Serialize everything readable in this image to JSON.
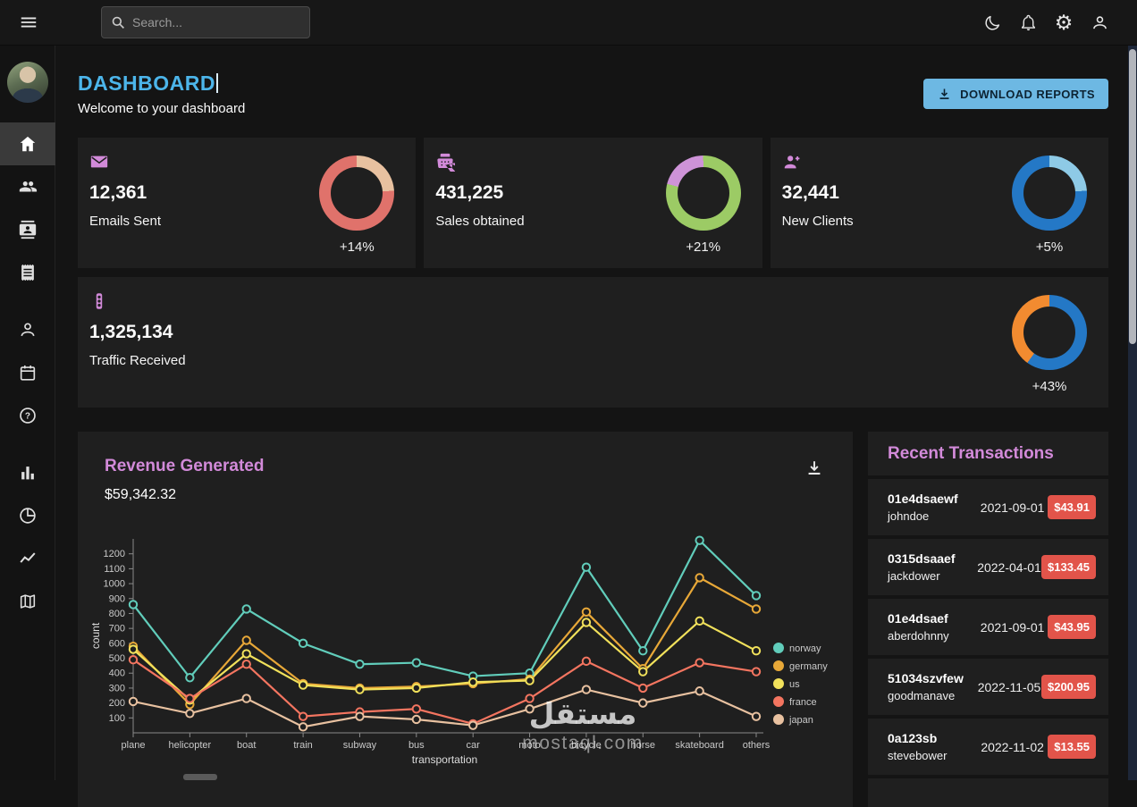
{
  "colors": {
    "accent_blue": "#4cb5ea",
    "accent_purple": "#d28ad9",
    "badge_red": "#e2544a",
    "card": "#1f1f1f",
    "background": "#141414"
  },
  "topbar": {
    "search_placeholder": "Search...",
    "icons": [
      "menu",
      "search",
      "dark-mode",
      "notifications",
      "settings",
      "profile"
    ]
  },
  "sidebar": {
    "items": [
      {
        "name": "dashboard",
        "icon": "home-icon",
        "active": true
      },
      {
        "name": "team",
        "icon": "people-icon",
        "active": false
      },
      {
        "name": "contacts",
        "icon": "contacts-icon",
        "active": false
      },
      {
        "name": "invoices",
        "icon": "receipt-icon",
        "active": false
      },
      {
        "name": "profile-form",
        "icon": "person-icon",
        "active": false
      },
      {
        "name": "calendar",
        "icon": "calendar-icon",
        "active": false
      },
      {
        "name": "faq",
        "icon": "help-icon",
        "active": false
      },
      {
        "name": "bar-chart",
        "icon": "bar-chart-icon",
        "active": false
      },
      {
        "name": "pie-chart",
        "icon": "pie-chart-icon",
        "active": false
      },
      {
        "name": "line-chart",
        "icon": "line-chart-icon",
        "active": false
      },
      {
        "name": "geography",
        "icon": "map-icon",
        "active": false
      }
    ]
  },
  "page": {
    "title": "DASHBOARD",
    "subtitle": "Welcome to your dashboard",
    "download_button": "DOWNLOAD REPORTS"
  },
  "stats": [
    {
      "icon": "email-icon",
      "value": "12,361",
      "label": "Emails Sent",
      "delta": "+14%",
      "donut": {
        "from": 0,
        "c1": "#e8c1a0",
        "c2": "#e0726b",
        "split": 24
      }
    },
    {
      "icon": "point-of-sale-icon",
      "value": "431,225",
      "label": "Sales obtained",
      "delta": "+21%",
      "donut": {
        "from": 284,
        "c1": "#ce93d8",
        "c2": "#9ccb65",
        "split": 21
      }
    },
    {
      "icon": "person-add-icon",
      "value": "32,441",
      "label": "New Clients",
      "delta": "+5%",
      "donut": {
        "from": 0,
        "c1": "#8ecae6",
        "c2": "#2478c6",
        "split": 24
      }
    },
    {
      "icon": "traffic-icon",
      "value": "1,325,134",
      "label": "Traffic Received",
      "delta": "+43%",
      "donut": {
        "from": 216,
        "c1": "#f28b30",
        "c2": "#2478c6",
        "split": 40
      }
    }
  ],
  "revenue": {
    "title": "Revenue Generated",
    "amount": "$59,342.32"
  },
  "transactions": {
    "title": "Recent Transactions",
    "items": [
      {
        "id": "01e4dsaewf",
        "user": "johndoe",
        "date": "2021-09-01",
        "amount": "$43.91"
      },
      {
        "id": "0315dsaaef",
        "user": "jackdower",
        "date": "2022-04-01",
        "amount": "$133.45"
      },
      {
        "id": "01e4dsaef",
        "user": "aberdohnny",
        "date": "2021-09-01",
        "amount": "$43.95"
      },
      {
        "id": "51034szvfew",
        "user": "goodmanave",
        "date": "2022-11-05",
        "amount": "$200.95"
      },
      {
        "id": "0a123sb",
        "user": "stevebower",
        "date": "2022-11-02",
        "amount": "$13.55"
      }
    ]
  },
  "chart_data": {
    "type": "line",
    "title": "Revenue Generated",
    "x": [
      "plane",
      "helicopter",
      "boat",
      "train",
      "subway",
      "bus",
      "car",
      "moto",
      "bicycle",
      "horse",
      "skateboard",
      "others"
    ],
    "series": [
      {
        "name": "norway",
        "color": "#61cdbb",
        "values": [
          860,
          370,
          830,
          600,
          460,
          470,
          380,
          400,
          1110,
          550,
          1290,
          920
        ]
      },
      {
        "name": "germany",
        "color": "#e8a838",
        "values": [
          580,
          190,
          620,
          330,
          300,
          310,
          330,
          360,
          810,
          430,
          1040,
          830
        ]
      },
      {
        "name": "us",
        "color": "#f1e15b",
        "values": [
          560,
          220,
          530,
          320,
          290,
          300,
          340,
          350,
          740,
          410,
          750,
          550
        ]
      },
      {
        "name": "france",
        "color": "#f47560",
        "values": [
          490,
          230,
          460,
          110,
          140,
          160,
          60,
          230,
          480,
          300,
          470,
          410
        ]
      },
      {
        "name": "japan",
        "color": "#e8c1a0",
        "values": [
          210,
          130,
          230,
          40,
          110,
          90,
          50,
          160,
          290,
          200,
          280,
          110
        ]
      }
    ],
    "xlabel": "transportation",
    "ylabel": "count",
    "ylim": [
      0,
      1300
    ],
    "yticks": [
      100,
      200,
      300,
      400,
      500,
      600,
      700,
      800,
      900,
      1000,
      1100,
      1200
    ],
    "legend_position": "right",
    "grid": false,
    "point_fill": "#1f1f1f"
  },
  "watermark": {
    "arabic": "مستقل",
    "domain": "mostaql.com"
  }
}
